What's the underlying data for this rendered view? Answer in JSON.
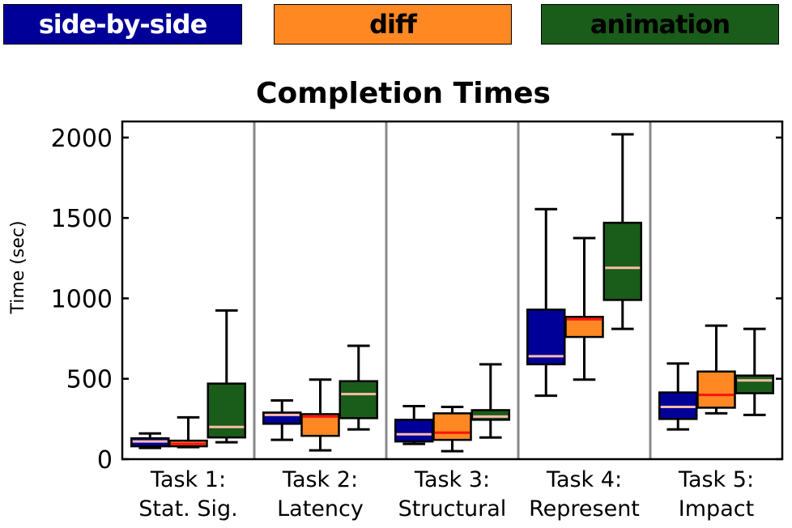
{
  "chart_data": {
    "type": "box",
    "title": "Completion Times",
    "ylabel": "Time (sec)",
    "xlabel": "",
    "ylim": [
      0,
      2100
    ],
    "yticks": [
      0,
      500,
      1000,
      1500,
      2000
    ],
    "legend_position": "top",
    "categories": [
      [
        "Task 1:",
        "Stat. Sig."
      ],
      [
        "Task 2:",
        "Latency"
      ],
      [
        "Task 3:",
        "Structural"
      ],
      [
        "Task 4:",
        "Represent"
      ],
      [
        "Task 5:",
        "Impact"
      ]
    ],
    "series": [
      {
        "name": "side-by-side",
        "color": "#000099",
        "median_color": "#ffbbaa",
        "boxes": [
          {
            "min": 70,
            "q1": 80,
            "median": 110,
            "q3": 130,
            "max": 160
          },
          {
            "min": 120,
            "q1": 220,
            "median": 275,
            "q3": 290,
            "max": 365
          },
          {
            "min": 95,
            "q1": 110,
            "median": 155,
            "q3": 245,
            "max": 330
          },
          {
            "min": 395,
            "q1": 590,
            "median": 640,
            "q3": 930,
            "max": 1555
          },
          {
            "min": 185,
            "q1": 250,
            "median": 325,
            "q3": 415,
            "max": 595
          }
        ]
      },
      {
        "name": "diff",
        "color": "#ff8822",
        "median_color": "#ff1111",
        "boxes": [
          {
            "min": 75,
            "q1": 80,
            "median": 95,
            "q3": 115,
            "max": 260
          },
          {
            "min": 55,
            "q1": 145,
            "median": 265,
            "q3": 280,
            "max": 495
          },
          {
            "min": 50,
            "q1": 120,
            "median": 165,
            "q3": 285,
            "max": 325
          },
          {
            "min": 495,
            "q1": 760,
            "median": 870,
            "q3": 885,
            "max": 1375
          },
          {
            "min": 285,
            "q1": 320,
            "median": 400,
            "q3": 545,
            "max": 830
          }
        ]
      },
      {
        "name": "animation",
        "color": "#1a5c1a",
        "median_color": "#ffbbaa",
        "boxes": [
          {
            "min": 105,
            "q1": 135,
            "median": 200,
            "q3": 470,
            "max": 925
          },
          {
            "min": 185,
            "q1": 255,
            "median": 405,
            "q3": 485,
            "max": 705
          },
          {
            "min": 135,
            "q1": 245,
            "median": 265,
            "q3": 305,
            "max": 590
          },
          {
            "min": 810,
            "q1": 990,
            "median": 1190,
            "q3": 1470,
            "max": 2020
          },
          {
            "min": 275,
            "q1": 410,
            "median": 490,
            "q3": 520,
            "max": 810
          }
        ]
      }
    ]
  }
}
